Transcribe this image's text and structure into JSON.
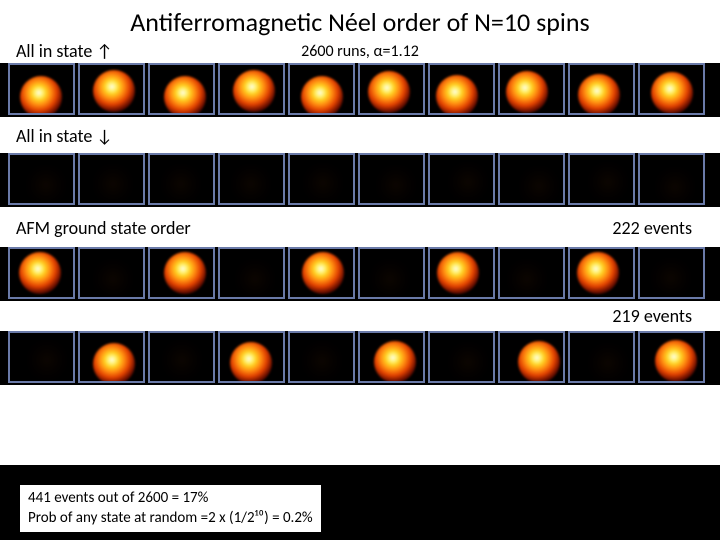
{
  "title": "Antiferromagnetic Néel order of N=10 spins",
  "subtitle": "2600 runs, α=1.12",
  "labels": {
    "row1": "All in state ↑",
    "row2": "All in state ↓",
    "row3": "AFM ground state order",
    "events_a": "222 events",
    "events_b": "219 events"
  },
  "rows": [
    {
      "pattern": [
        1,
        1,
        1,
        1,
        1,
        1,
        1,
        1,
        1,
        1
      ],
      "blobTop": 8,
      "blobLeft": 10
    },
    {
      "pattern": [
        0,
        0,
        0,
        0,
        0,
        0,
        0,
        0,
        0,
        0
      ],
      "blobTop": 8,
      "blobLeft": 14
    },
    {
      "pattern": [
        1,
        0,
        1,
        0,
        1,
        0,
        1,
        0,
        1,
        0
      ],
      "blobTop": 6,
      "blobLeft": 10
    },
    {
      "pattern": [
        0,
        1,
        0,
        1,
        0,
        1,
        0,
        1,
        0,
        1
      ],
      "blobTop": 8,
      "blobLeft": 14
    }
  ],
  "footer_line1": "441 events out of 2600  =  17%",
  "footer_line2": "Prob of any state at random =2 x (1/2¹⁰)  =  0.2%",
  "colors": {
    "cell_border": "#6a7aa8",
    "bg": "#000000",
    "text_on_white": "#000000"
  }
}
